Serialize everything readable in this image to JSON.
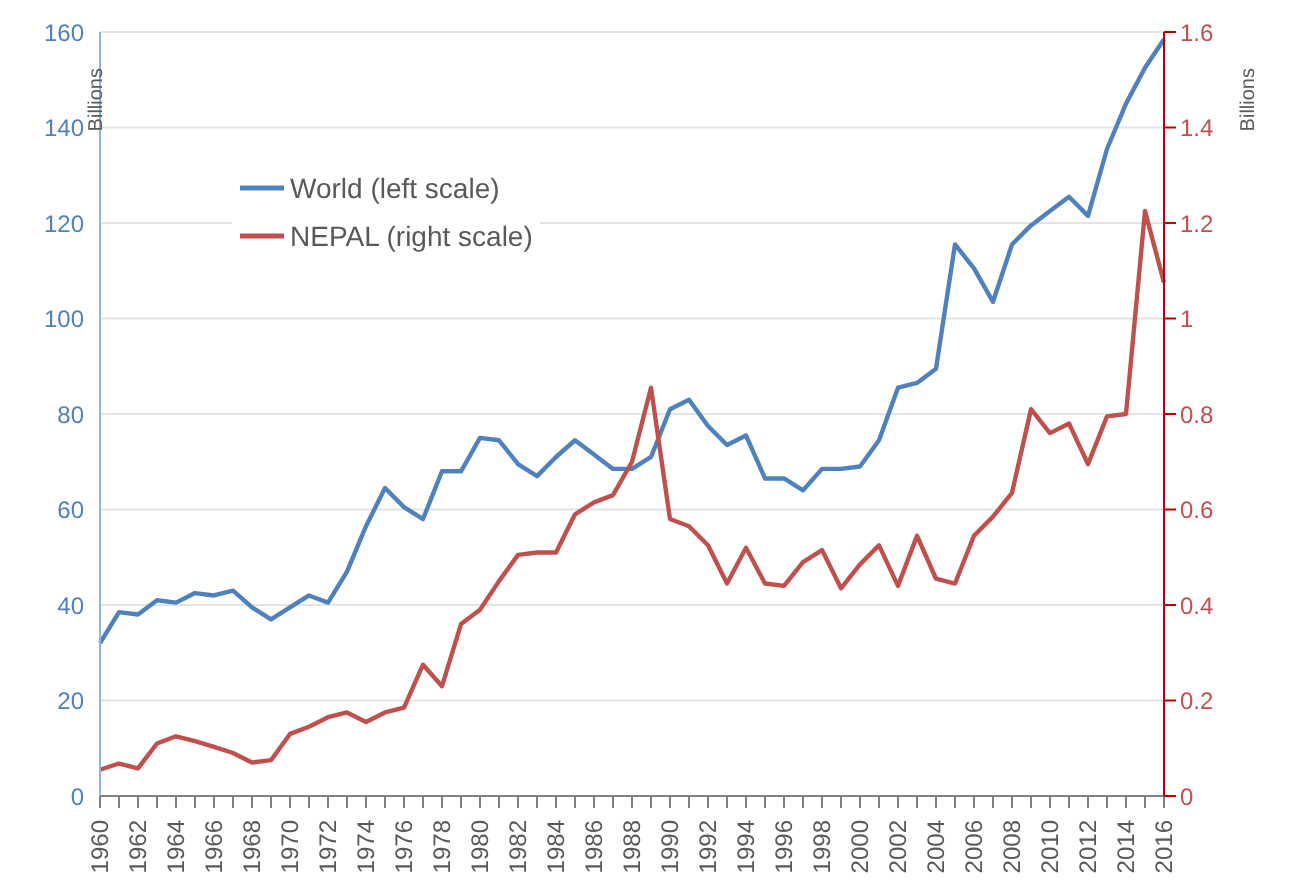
{
  "chart_data": {
    "type": "line",
    "xlabel": null,
    "ylabel": "Billions",
    "y2label": "Billions",
    "categories": [
      "1960",
      null,
      "1962",
      null,
      "1964",
      null,
      "1966",
      null,
      "1968",
      null,
      "1970",
      null,
      "1972",
      null,
      "1974",
      null,
      "1976",
      null,
      "1978",
      null,
      "1980",
      null,
      "1982",
      null,
      "1984",
      null,
      "1986",
      null,
      "1988",
      null,
      "1990",
      null,
      "1992",
      null,
      "1994",
      null,
      "1996",
      null,
      "1998",
      null,
      "2000",
      null,
      "2002",
      null,
      "2004",
      null,
      "2006",
      null,
      "2008",
      null,
      "2010",
      null,
      "2012",
      null,
      "2014",
      null,
      "2016"
    ],
    "series": [
      {
        "name": "World (left scale)",
        "color": "#4f81bd",
        "values": [
          32,
          38.5,
          38,
          41,
          40.5,
          42.5,
          42,
          43,
          39.5,
          37,
          39.5,
          42,
          40.5,
          47,
          56.5,
          64.5,
          60.5,
          58,
          68,
          68,
          75,
          74.5,
          69.5,
          67,
          71,
          74.5,
          71.5,
          68.5,
          68.5,
          71,
          81,
          83,
          77.5,
          73.5,
          75.5,
          66.5,
          66.5,
          64,
          68.5,
          68.5,
          69,
          74.5,
          85.5,
          86.5,
          89.5,
          115.5,
          110.5,
          103.5,
          115.5,
          119.5,
          122.5,
          125.5,
          121.5,
          135.5,
          145,
          152.5,
          158.5
        ]
      },
      {
        "name": "NEPAL (right scale)",
        "color": "#c0504d",
        "axis": "y2",
        "values": [
          0.055,
          0.068,
          0.058,
          0.11,
          0.125,
          0.115,
          0.103,
          0.09,
          0.07,
          0.075,
          0.13,
          0.145,
          0.165,
          0.175,
          0.155,
          0.175,
          0.185,
          0.275,
          0.23,
          0.36,
          0.39,
          0.45,
          0.505,
          0.51,
          0.51,
          0.59,
          0.615,
          0.63,
          0.7,
          0.855,
          0.58,
          0.565,
          0.525,
          0.445,
          0.52,
          0.445,
          0.44,
          0.49,
          0.515,
          0.435,
          0.485,
          0.525,
          0.44,
          0.545,
          0.455,
          0.445,
          0.545,
          0.585,
          0.635,
          0.81,
          0.76,
          0.78,
          0.695,
          0.795,
          0.8,
          1.225,
          1.075
        ]
      }
    ],
    "ylim": [
      0,
      160
    ],
    "yticks": [
      0,
      20,
      40,
      60,
      80,
      100,
      120,
      140,
      160
    ],
    "y2lim": [
      0,
      1.6
    ],
    "y2ticks": [
      0,
      0.2,
      0.4,
      0.6,
      0.8,
      1,
      1.2,
      1.4,
      1.6
    ],
    "grid": "y",
    "legend": "top left",
    "marker": "none",
    "line_style": "solid"
  }
}
